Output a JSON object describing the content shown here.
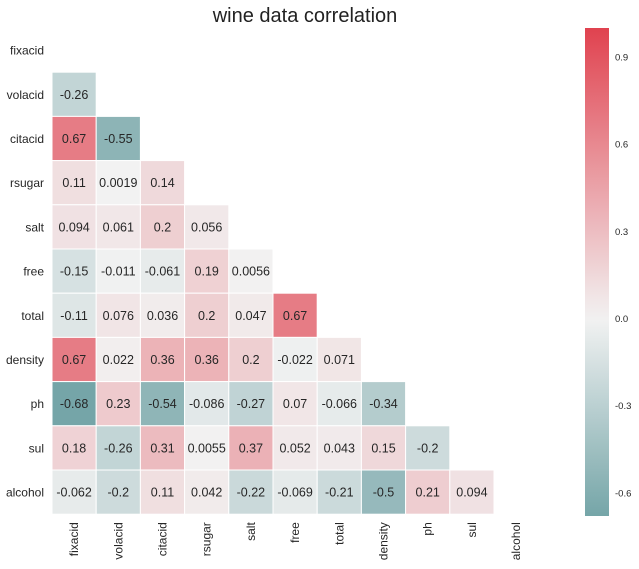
{
  "chart_data": {
    "type": "heatmap",
    "title": "wine data correlation",
    "labels": [
      "fixacid",
      "volacid",
      "citacid",
      "rsugar",
      "salt",
      "free",
      "total",
      "density",
      "ph",
      "sul",
      "alcohol"
    ],
    "mask": "upper-triangle-including-diagonal",
    "values": [
      [
        null,
        null,
        null,
        null,
        null,
        null,
        null,
        null,
        null,
        null,
        null
      ],
      [
        -0.26,
        null,
        null,
        null,
        null,
        null,
        null,
        null,
        null,
        null,
        null
      ],
      [
        0.67,
        -0.55,
        null,
        null,
        null,
        null,
        null,
        null,
        null,
        null,
        null
      ],
      [
        0.11,
        0.0019,
        0.14,
        null,
        null,
        null,
        null,
        null,
        null,
        null,
        null
      ],
      [
        0.094,
        0.061,
        0.2,
        0.056,
        null,
        null,
        null,
        null,
        null,
        null,
        null
      ],
      [
        -0.15,
        -0.011,
        -0.061,
        0.19,
        0.0056,
        null,
        null,
        null,
        null,
        null,
        null
      ],
      [
        -0.11,
        0.076,
        0.036,
        0.2,
        0.047,
        0.67,
        null,
        null,
        null,
        null,
        null
      ],
      [
        0.67,
        0.022,
        0.36,
        0.36,
        0.2,
        -0.022,
        0.071,
        null,
        null,
        null,
        null
      ],
      [
        -0.68,
        0.23,
        -0.54,
        -0.086,
        -0.27,
        0.07,
        -0.066,
        -0.34,
        null,
        null,
        null
      ],
      [
        0.18,
        -0.26,
        0.31,
        0.0055,
        0.37,
        0.052,
        0.043,
        0.15,
        -0.2,
        null,
        null
      ],
      [
        -0.062,
        -0.2,
        0.11,
        0.042,
        -0.22,
        -0.069,
        -0.21,
        -0.5,
        0.21,
        0.094,
        null
      ]
    ],
    "value_labels": [
      [
        "",
        "",
        "",
        "",
        "",
        "",
        "",
        "",
        "",
        "",
        ""
      ],
      [
        "-0.26",
        "",
        "",
        "",
        "",
        "",
        "",
        "",
        "",
        "",
        ""
      ],
      [
        "0.67",
        "-0.55",
        "",
        "",
        "",
        "",
        "",
        "",
        "",
        "",
        ""
      ],
      [
        "0.11",
        "0.0019",
        "0.14",
        "",
        "",
        "",
        "",
        "",
        "",
        "",
        ""
      ],
      [
        "0.094",
        "0.061",
        "0.2",
        "0.056",
        "",
        "",
        "",
        "",
        "",
        "",
        ""
      ],
      [
        "-0.15",
        "-0.011",
        "-0.061",
        "0.19",
        "0.0056",
        "",
        "",
        "",
        "",
        "",
        ""
      ],
      [
        "-0.11",
        "0.076",
        "0.036",
        "0.2",
        "0.047",
        "0.67",
        "",
        "",
        "",
        "",
        ""
      ],
      [
        "0.67",
        "0.022",
        "0.36",
        "0.36",
        "0.2",
        "-0.022",
        "0.071",
        "",
        "",
        "",
        ""
      ],
      [
        "-0.68",
        "0.23",
        "-0.54",
        "-0.086",
        "-0.27",
        "0.07",
        "-0.066",
        "-0.34",
        "",
        "",
        ""
      ],
      [
        "0.18",
        "-0.26",
        "0.31",
        "0.0055",
        "0.37",
        "0.052",
        "0.043",
        "0.15",
        "-0.2",
        "",
        ""
      ],
      [
        "-0.062",
        "-0.2",
        "0.11",
        "0.042",
        "-0.22",
        "-0.069",
        "-0.21",
        "-0.5",
        "0.21",
        "0.094",
        ""
      ]
    ],
    "colorbar": {
      "vmin": -0.68,
      "vmax": 1.0,
      "ticks": [
        0.9,
        0.6,
        0.3,
        0.0,
        -0.3,
        -0.6
      ],
      "tick_labels": [
        "0.9",
        "0.6",
        "0.3",
        "0.0",
        "-0.3",
        "-0.6"
      ],
      "color_negative": "#75a5a8",
      "color_center": "#f2f2f2",
      "color_positive": "#e0424f"
    },
    "grid": false,
    "background": "#ffffff"
  }
}
